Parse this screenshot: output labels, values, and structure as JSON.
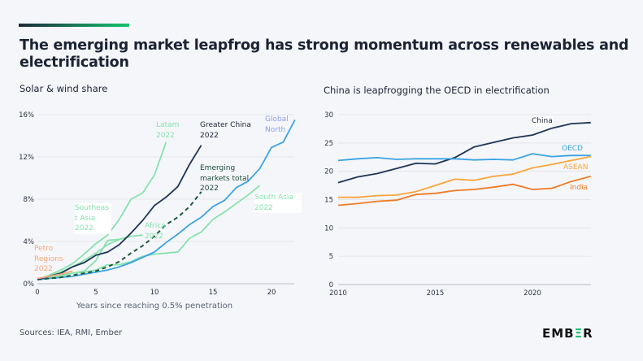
{
  "header": {
    "title": "The emerging market leapfrog has strong momentum across renewables and electrification"
  },
  "footer": {
    "sources": "Sources: IEA, RMI, Ember",
    "logo_text": "EMBER"
  },
  "chart_data": [
    {
      "type": "line",
      "title": "Solar & wind share",
      "xlabel": "Years since reaching 0.5% penetration",
      "ylabel": "",
      "xlim": [
        0,
        22
      ],
      "ylim": [
        0,
        16
      ],
      "x_ticks": [
        "0",
        "5",
        "10",
        "15",
        "20"
      ],
      "y_ticks": [
        "0%",
        "4%",
        "8%",
        "12%",
        "16%"
      ],
      "grid": true,
      "series": [
        {
          "name": "Latam 2022",
          "color": "#86e3ad",
          "dashed": false,
          "x": [
            0,
            1,
            2,
            3,
            4,
            5,
            6,
            7,
            8,
            9,
            10,
            11
          ],
          "y": [
            0.4,
            0.8,
            1.3,
            1.9,
            2.8,
            3.8,
            4.6,
            6.1,
            8.0,
            8.6,
            10.3,
            13.4
          ]
        },
        {
          "name": "Southeast Asia 2022",
          "color": "#86e3ad",
          "dashed": false,
          "x": [
            0,
            1,
            2,
            3,
            4,
            5,
            6,
            7,
            8
          ],
          "y": [
            0.4,
            0.7,
            1.1,
            1.6,
            2.2,
            2.9,
            3.7,
            4.2,
            4.5
          ]
        },
        {
          "name": "Africa 2022",
          "color": "#86e3ad",
          "dashed": false,
          "x": [
            0,
            1,
            2,
            3,
            4,
            5,
            6,
            7,
            8,
            9
          ],
          "y": [
            0.4,
            0.5,
            0.7,
            1.0,
            1.2,
            2.2,
            4.1,
            4.2,
            4.5,
            4.6
          ]
        },
        {
          "name": "South Asia 2022",
          "color": "#86e3ad",
          "dashed": false,
          "x": [
            0,
            1,
            2,
            3,
            4,
            5,
            6,
            7,
            8,
            9,
            10,
            11,
            12,
            13,
            14,
            15,
            16,
            17,
            18,
            19
          ],
          "y": [
            0.4,
            0.6,
            0.8,
            1.0,
            1.1,
            1.3,
            1.8,
            1.8,
            2.1,
            2.6,
            2.8,
            2.9,
            3.0,
            4.3,
            4.9,
            6.1,
            6.8,
            7.6,
            8.4,
            9.3
          ]
        },
        {
          "name": "Global North",
          "color": "#3aa3e3",
          "dashed": false,
          "x": [
            0,
            1,
            2,
            3,
            4,
            5,
            6,
            7,
            8,
            9,
            10,
            11,
            12,
            13,
            14,
            15,
            16,
            17,
            18,
            19,
            20,
            21,
            22
          ],
          "y": [
            0.4,
            0.5,
            0.6,
            0.7,
            0.9,
            1.1,
            1.3,
            1.6,
            2.0,
            2.5,
            3.0,
            3.9,
            4.7,
            5.6,
            6.3,
            7.3,
            7.9,
            9.1,
            9.7,
            10.9,
            12.9,
            13.4,
            15.5
          ]
        },
        {
          "name": "Emerging markets total 2022",
          "color": "#1d5a3a",
          "dashed": true,
          "x": [
            0,
            1,
            2,
            3,
            4,
            5,
            6,
            7,
            8,
            9,
            10,
            11,
            12,
            13,
            14
          ],
          "y": [
            0.4,
            0.5,
            0.6,
            0.8,
            1.0,
            1.2,
            1.6,
            2.1,
            2.9,
            3.6,
            4.5,
            5.6,
            6.3,
            7.3,
            8.7
          ]
        },
        {
          "name": "Greater China 2022",
          "color": "#1e3457",
          "dashed": false,
          "x": [
            0,
            1,
            2,
            3,
            4,
            5,
            6,
            7,
            8,
            9,
            10,
            11,
            12,
            13,
            14
          ],
          "y": [
            0.4,
            0.7,
            1.0,
            1.6,
            2.0,
            2.7,
            3.0,
            3.7,
            4.8,
            6.0,
            7.4,
            8.2,
            9.2,
            11.3,
            13.1
          ]
        },
        {
          "name": "Petro Regions 2022",
          "color": "#f6a77c",
          "dashed": false,
          "x": [
            0,
            1,
            2,
            3
          ],
          "y": [
            0.5,
            0.7,
            0.9,
            1.2
          ]
        }
      ],
      "labels": [
        {
          "text": "Latam\n2022",
          "color": "#86e3ad"
        },
        {
          "text": "Greater China\n2022",
          "color": "#1b2333"
        },
        {
          "text": "Global\nNorth",
          "color": "#8fa0e6"
        },
        {
          "text": "Emerging\nmarkets total\n2022",
          "color": "#1d4a36"
        },
        {
          "text": "South Asia\n2022",
          "color": "#86e3ad"
        },
        {
          "text": "Southeas\nt Asia\n2022",
          "color": "#86e3ad"
        },
        {
          "text": "Africa\n2022",
          "color": "#86e3ad"
        },
        {
          "text": "Petro\nRegions\n2022",
          "color": "#f6a77c"
        }
      ]
    },
    {
      "type": "line",
      "title": "China is leapfrogging the OECD in electrification",
      "xlabel": "",
      "ylabel": "",
      "xlim": [
        2010,
        2023
      ],
      "ylim": [
        0,
        30
      ],
      "x_ticks": [
        "2010",
        "2015",
        "2020"
      ],
      "y_ticks": [
        "0",
        "5",
        "10",
        "15",
        "20",
        "25",
        "30"
      ],
      "grid": true,
      "x": [
        2010,
        2011,
        2012,
        2013,
        2014,
        2015,
        2016,
        2017,
        2018,
        2019,
        2020,
        2021,
        2022,
        2023
      ],
      "series": [
        {
          "name": "China",
          "color": "#1e3457",
          "y": [
            18.0,
            19.0,
            19.6,
            20.5,
            21.4,
            21.3,
            22.4,
            24.3,
            25.1,
            25.9,
            26.4,
            27.6,
            28.4,
            28.6
          ]
        },
        {
          "name": "OECD",
          "color": "#3aa3e3",
          "y": [
            21.9,
            22.2,
            22.4,
            22.1,
            22.2,
            22.2,
            22.2,
            22.0,
            22.1,
            22.0,
            23.1,
            22.6,
            22.8,
            22.8
          ]
        },
        {
          "name": "ASEAN",
          "color": "#f9a53a",
          "y": [
            15.4,
            15.4,
            15.7,
            15.8,
            16.4,
            17.5,
            18.6,
            18.4,
            19.1,
            19.5,
            20.6,
            21.2,
            21.9,
            22.6
          ]
        },
        {
          "name": "India",
          "color": "#f07a22",
          "y": [
            14.0,
            14.3,
            14.7,
            14.9,
            15.9,
            16.1,
            16.6,
            16.8,
            17.2,
            17.7,
            16.8,
            17.0,
            18.2,
            19.1
          ]
        }
      ],
      "label_colors": [
        "#1b2333",
        "#3aa3e3",
        "#f9a53a",
        "#f07a22"
      ]
    }
  ]
}
